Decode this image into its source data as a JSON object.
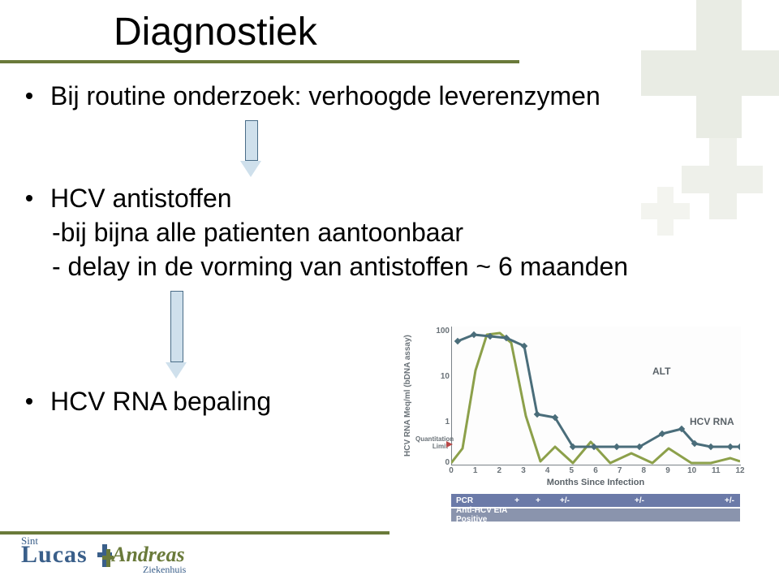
{
  "title": "Diagnostiek",
  "bullets": {
    "b1": "Bij routine onderzoek: verhoogde leverenzymen",
    "b2": "HCV antistoffen",
    "b2_sub1": "-bij bijna alle patienten aantoonbaar",
    "b2_sub2": "- delay in de vorming van antistoffen ~ 6 maanden",
    "b3": "HCV RNA bepaling"
  },
  "chart": {
    "type": "line",
    "y_axis_label": "HCV RNA Meq/ml (bDNA assay)",
    "x_axis_label": "Months Since Infection",
    "y_scale": "log",
    "y_ticks": [
      0,
      1,
      10,
      100
    ],
    "quant_limit_label": "Quantitation\nLimit",
    "x_ticks": [
      0,
      1,
      2,
      3,
      4,
      5,
      6,
      7,
      8,
      9,
      10,
      11,
      12
    ],
    "series": [
      {
        "name": "ALT",
        "label": "ALT",
        "label_pos": {
          "x": 248,
          "y": 48
        },
        "color": "#8ca04a",
        "stroke_width": 3,
        "points": [
          [
            0,
            168
          ],
          [
            14,
            150
          ],
          [
            30,
            54
          ],
          [
            44,
            10
          ],
          [
            60,
            8
          ],
          [
            74,
            20
          ],
          [
            92,
            110
          ],
          [
            110,
            166
          ],
          [
            128,
            148
          ],
          [
            150,
            168
          ],
          [
            172,
            142
          ],
          [
            196,
            168
          ],
          [
            222,
            156
          ],
          [
            248,
            168
          ],
          [
            268,
            150
          ],
          [
            296,
            168
          ],
          [
            320,
            168
          ],
          [
            344,
            162
          ],
          [
            356,
            166
          ]
        ]
      },
      {
        "name": "HCV RNA",
        "label": "HCV RNA",
        "label_pos": {
          "x": 294,
          "y": 110
        },
        "color": "#4a6d7a",
        "stroke_width": 3,
        "marker": "diamond",
        "points": [
          [
            8,
            18
          ],
          [
            28,
            10
          ],
          [
            48,
            12
          ],
          [
            68,
            14
          ],
          [
            90,
            24
          ],
          [
            106,
            108
          ],
          [
            128,
            112
          ],
          [
            150,
            148
          ],
          [
            176,
            148
          ],
          [
            204,
            148
          ],
          [
            232,
            148
          ],
          [
            260,
            132
          ],
          [
            284,
            126
          ],
          [
            300,
            144
          ],
          [
            320,
            148
          ],
          [
            344,
            148
          ],
          [
            356,
            148
          ]
        ]
      }
    ],
    "legend_rows": [
      {
        "label": "PCR",
        "cells": [
          "+",
          "+",
          "+/-",
          "",
          "",
          "+/-",
          "",
          "",
          "",
          "+/-"
        ],
        "bg": "#6b7aa8"
      },
      {
        "label": "Anti-HCV EIA Positive",
        "cells": [],
        "bg": "#8a94ad"
      }
    ],
    "colors": {
      "axis": "#7a8288",
      "tick_text": "#6a7278",
      "ql_arrow": "#b84848"
    }
  },
  "logo": {
    "sint": "Sint",
    "lucas": "Lucas",
    "andreas": "Andreas",
    "ziekenhuis": "Ziekenhuis"
  },
  "styles": {
    "title_color": "#000000",
    "accent_bar": "#6a7a3a",
    "arrow_fill": "#cfe0ec",
    "arrow_border": "#4a6d88",
    "body_font_size": 32
  }
}
